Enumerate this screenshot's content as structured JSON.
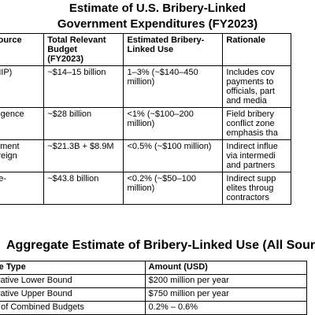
{
  "title": [
    "Estimate of U.S. Bribery-Linked",
    "Government Expenditures (FY2023)"
  ],
  "table": {
    "header": [
      [
        "y / Source"
      ],
      [
        "Total Relevant",
        "Budget",
        "(FY2023)"
      ],
      [
        "Estimated Bribery-",
        "Linked Use"
      ],
      [
        "Rationale"
      ]
    ],
    "rows": [
      [
        [
          "om NIP)"
        ],
        [
          "~$14–15 billion"
        ],
        [
          "1–3% (~$140–450",
          "million)"
        ],
        [
          "Includes cov",
          "payments to",
          "officials, part",
          "and media"
        ]
      ],
      [
        [
          "Intelligence"
        ],
        [
          "~$28 billion"
        ],
        [
          "<1% (~$100–200",
          "million)"
        ],
        [
          "Field bribery",
          "conflict zone",
          "emphasis tha"
        ]
      ],
      [
        [
          "epartment",
          "+ Foreign"
        ],
        [
          "~$21.3B + $8.9M"
        ],
        [
          "<0.5% (~$100 million)"
        ],
        [
          "Indirect influe",
          "via intermedi",
          "and partners"
        ]
      ],
      [
        [
          "(State-"
        ],
        [
          "~$43.8 billion"
        ],
        [
          "<0.2% (~$50–100",
          "million)"
        ],
        [
          "Indirect supp",
          "elites throug",
          "contractors"
        ]
      ]
    ]
  },
  "aggregate": {
    "heading": "Aggregate Estimate of Bribery-Linked Use (All Source",
    "header": [
      "te Type",
      "Amount (USD)"
    ],
    "rows": [
      [
        "vative Lower Bound",
        "$200 million per year"
      ],
      [
        "vative Upper Bound",
        "$750 million per year"
      ],
      [
        "t of Combined Budgets",
        "0.2% – 0.6%"
      ]
    ]
  }
}
